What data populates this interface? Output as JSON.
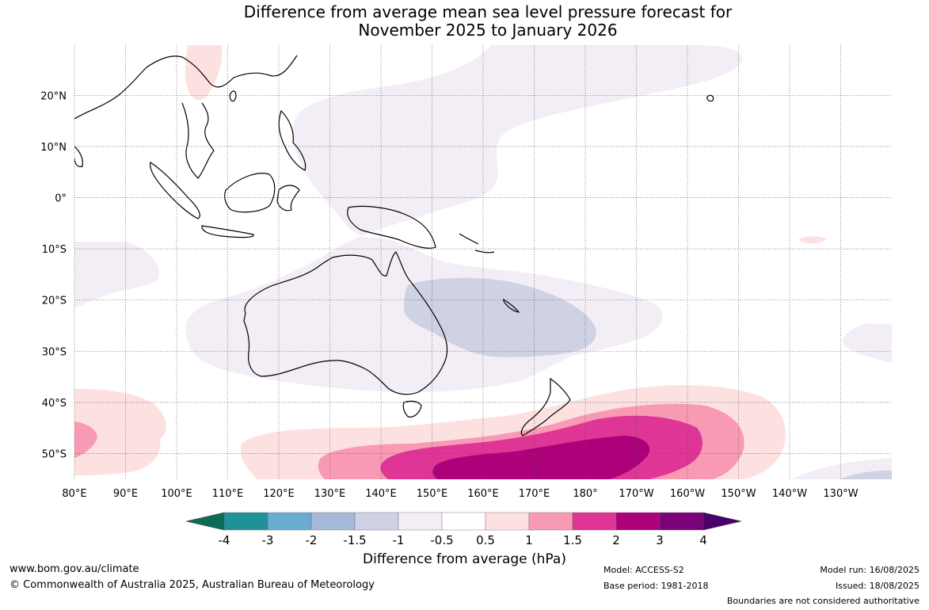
{
  "title": {
    "line1": "Difference from average mean sea level pressure forecast for",
    "line2": "November 2025 to January 2026"
  },
  "map": {
    "lat_ticks": [
      "20°N",
      "10°N",
      "0°",
      "10°S",
      "20°S",
      "30°S",
      "40°S",
      "50°S"
    ],
    "lon_ticks": [
      "80°E",
      "90°E",
      "100°E",
      "110°E",
      "120°E",
      "130°E",
      "140°E",
      "150°E",
      "160°E",
      "170°E",
      "180°",
      "170°W",
      "160°W",
      "150°W",
      "140°W",
      "130°W"
    ]
  },
  "legend": {
    "label": "Difference from average (hPa)",
    "ticks": [
      "-4",
      "-3",
      "-2",
      "-1.5",
      "-1",
      "-0.5",
      "0.5",
      "1",
      "1.5",
      "2",
      "3",
      "4"
    ],
    "colors": {
      "lt_-4": "#0b6b56",
      "-4_-3": "#1e9296",
      "-3_-2": "#6aabd2",
      "-2_-1.5": "#a7b8d8",
      "-1.5_-1": "#cfd2e4",
      "-1_-0.5": "#f3edf5",
      "-0.5_0.5": "#ffffff",
      "0.5_1": "#fde0e0",
      "1_1.5": "#f89ab4",
      "1.5_2": "#de3597",
      "2_3": "#ad0179",
      "3_4": "#7a0177",
      "gt_4": "#49006a"
    }
  },
  "footer": {
    "website": "www.bom.gov.au/climate",
    "copyright": "© Commonwealth of Australia 2025, Australian Bureau of Meteorology",
    "model": "Model: ACCESS-S2",
    "base_period": "Base period: 1981-2018",
    "model_run": "Model run: 16/08/2025",
    "issued": "Issued: 18/08/2025",
    "disclaimer": "Boundaries are not considered authoritative"
  }
}
